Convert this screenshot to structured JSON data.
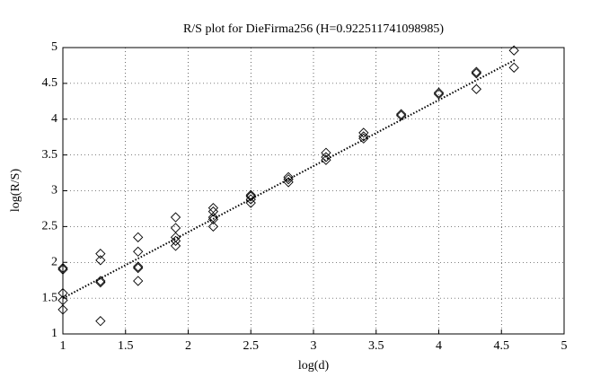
{
  "chart_data": {
    "type": "scatter",
    "title": "R/S plot for DieFirma256 (H=0.922511741098985)",
    "x_label": "log(d)",
    "y_label": "log(R/S)",
    "xlim": [
      1,
      5
    ],
    "ylim": [
      1,
      5
    ],
    "xticks": [
      1,
      1.5,
      2,
      2.5,
      3,
      3.5,
      4,
      4.5,
      5
    ],
    "yticks": [
      1,
      1.5,
      2,
      2.5,
      3,
      3.5,
      4,
      4.5,
      5
    ],
    "grid": true,
    "color": "#000000",
    "x": [
      1,
      1,
      1,
      1,
      1,
      1.3,
      1.3,
      1.3,
      1.3,
      1.3,
      1.6,
      1.6,
      1.6,
      1.6,
      1.6,
      1.9,
      1.9,
      1.9,
      1.9,
      1.9,
      2.2,
      2.2,
      2.2,
      2.2,
      2.2,
      2.5,
      2.5,
      2.5,
      2.5,
      2.8,
      2.8,
      2.8,
      3.1,
      3.1,
      3.1,
      3.4,
      3.4,
      3.4,
      3.7,
      3.7,
      4.0,
      4.0,
      4.3,
      4.3,
      4.3,
      4.6,
      4.6
    ],
    "values": [
      1.92,
      1.9,
      1.57,
      1.47,
      1.34,
      2.12,
      2.03,
      1.74,
      1.72,
      1.18,
      2.35,
      2.15,
      1.94,
      1.92,
      1.74,
      2.63,
      2.48,
      2.35,
      2.3,
      2.23,
      2.76,
      2.71,
      2.63,
      2.6,
      2.5,
      2.94,
      2.92,
      2.88,
      2.83,
      3.19,
      3.16,
      3.12,
      3.53,
      3.47,
      3.43,
      3.81,
      3.76,
      3.73,
      4.07,
      4.05,
      4.37,
      4.35,
      4.66,
      4.64,
      4.42,
      4.96,
      4.72
    ],
    "fit_line": {
      "x": [
        1,
        4.61
      ],
      "values": [
        1.5,
        4.83
      ]
    }
  }
}
